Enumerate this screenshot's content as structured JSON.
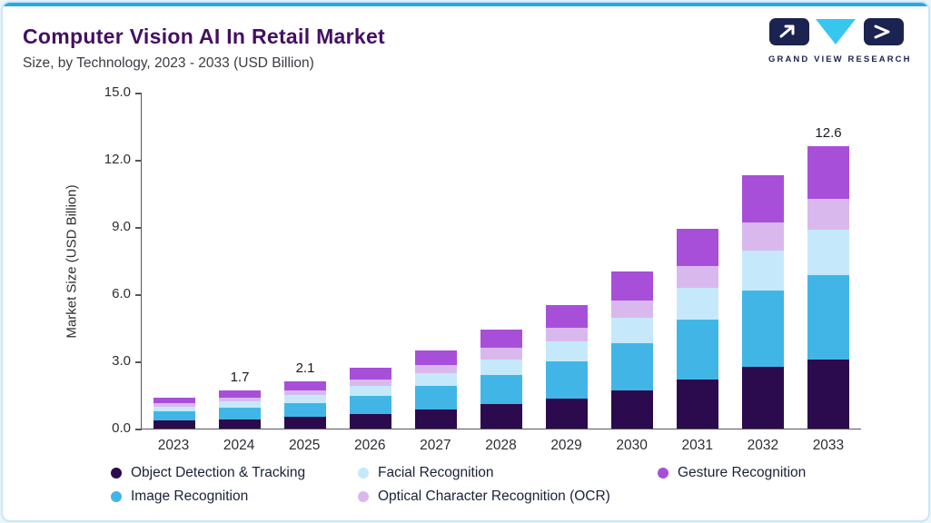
{
  "theme": {
    "accent_blue": "#29a9e0",
    "card_border": "#c9e7f8",
    "title_color": "#440f63",
    "logo_navy": "#1b2350",
    "logo_cyan": "#37c6f0"
  },
  "header": {
    "title": "Computer Vision AI In Retail Market",
    "subtitle": "Size, by Technology, 2023 - 2033 (USD Billion)",
    "logo_text": "GRAND VIEW RESEARCH"
  },
  "chart_data": {
    "type": "bar",
    "stacked": true,
    "title": "Computer Vision AI In Retail Market Size, by Technology, 2023 - 2033 (USD Billion)",
    "ylabel": "Market Size (USD Billion)",
    "ylim": [
      0,
      15
    ],
    "ytick_labels": [
      "0.0",
      "3.0",
      "6.0",
      "9.0",
      "12.0",
      "15.0"
    ],
    "grid": false,
    "legend_position": "bottom",
    "categories": [
      "2023",
      "2024",
      "2025",
      "2026",
      "2027",
      "2028",
      "2029",
      "2030",
      "2031",
      "2032",
      "2033"
    ],
    "series": [
      {
        "name": "Object Detection & Tracking",
        "color": "#2b0a4d",
        "values": [
          0.35,
          0.42,
          0.52,
          0.67,
          0.86,
          1.08,
          1.35,
          1.72,
          2.18,
          2.77,
          3.09
        ]
      },
      {
        "name": "Image Recognition",
        "color": "#41b6e6",
        "values": [
          0.42,
          0.51,
          0.63,
          0.81,
          1.05,
          1.32,
          1.65,
          2.1,
          2.67,
          3.39,
          3.78
        ]
      },
      {
        "name": "Facial Recognition",
        "color": "#c5e9fb",
        "values": [
          0.22,
          0.27,
          0.34,
          0.43,
          0.56,
          0.7,
          0.88,
          1.12,
          1.42,
          1.81,
          2.02
        ]
      },
      {
        "name": "Optical Character Recognition (OCR)",
        "color": "#d9b9ed",
        "values": [
          0.16,
          0.19,
          0.23,
          0.3,
          0.39,
          0.49,
          0.61,
          0.77,
          0.98,
          1.24,
          1.39
        ]
      },
      {
        "name": "Gesture Recognition",
        "color": "#a84fd9",
        "values": [
          0.25,
          0.31,
          0.38,
          0.49,
          0.64,
          0.81,
          1.01,
          1.29,
          1.65,
          2.09,
          2.32
        ]
      }
    ],
    "totals": [
      1.4,
      1.7,
      2.1,
      2.7,
      3.5,
      4.4,
      5.5,
      7.0,
      8.9,
      11.3,
      12.6
    ],
    "bar_value_labels": [
      "",
      "1.7",
      "2.1",
      "",
      "",
      "",
      "",
      "",
      "",
      "",
      "12.6"
    ],
    "legend_display_order": [
      "Object Detection & Tracking",
      "Facial Recognition",
      "Gesture Recognition",
      "Image Recognition",
      "Optical Character Recognition (OCR)"
    ]
  }
}
